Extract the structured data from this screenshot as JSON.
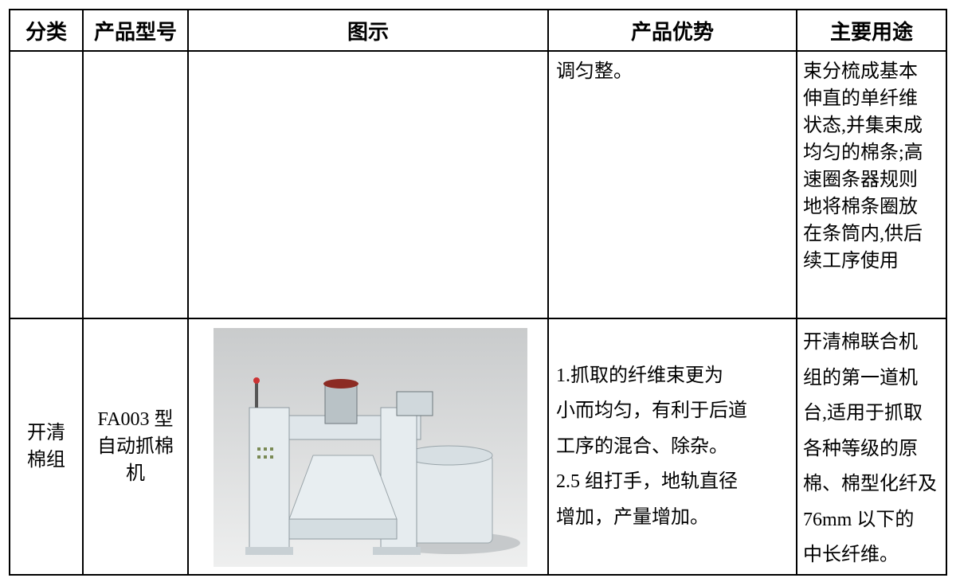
{
  "table": {
    "header": [
      "分类",
      "产品型号",
      "图示",
      "产品优势",
      "主要用途"
    ],
    "rows": [
      [
        [],
        [],
        [],
        [
          "调匀整。"
        ],
        [
          "束分梳成基本",
          "伸直的单纤维",
          "状态,并集束成",
          "均匀的棉条;高",
          "速圈条器规则",
          "地将棉条圈放",
          "在条筒内,供后",
          "续工序使用"
        ]
      ],
      [
        [
          "开清",
          "棉组"
        ],
        [
          "FA003 型",
          "自动抓棉",
          "机"
        ],
        [],
        [
          "1.抓取的纤维束更为",
          "小而均匀，有利于后道",
          "工序的混合、除杂。",
          "2.5 组打手，地轨直径",
          "增加，产量增加。"
        ],
        [
          "开清棉联合机",
          "组的第一道机",
          "台,适用于抓取",
          "各种等级的原",
          "棉、棉型化纤及",
          "76mm 以下的",
          "中长纤维。"
        ]
      ]
    ]
  }
}
